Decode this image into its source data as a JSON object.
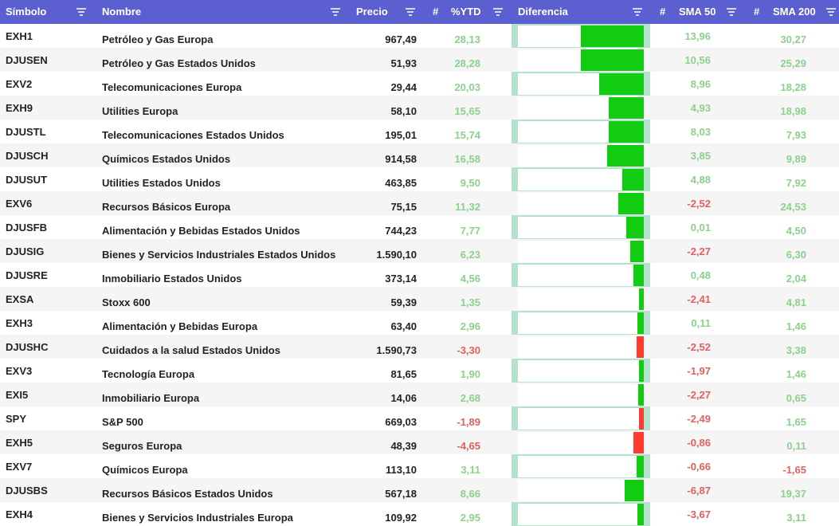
{
  "header": {
    "symbol": "Símbolo",
    "name": "Nombre",
    "price": "Precio",
    "ytd_hash": "#",
    "ytd": "%YTD",
    "diff": "Diferencia",
    "sma50_hash": "#",
    "sma50": "SMA 50",
    "sma200_hash": "#",
    "sma200": "SMA 200"
  },
  "colors": {
    "header_bg": "#5b5fd0",
    "positive": "#11cc11",
    "negative": "#ff3b30",
    "diff_column": "#b5e2cc"
  },
  "diff_scale_max": 28.28,
  "rows": [
    {
      "symbol": "EXH1",
      "name": "Petróleo y Gas Europa",
      "price": "967,49",
      "ytd": "28,13",
      "sma50": "13,96",
      "sma200": "30,27"
    },
    {
      "symbol": "DJUSEN",
      "name": "Petróleo y Gas Estados Unidos",
      "price": "51,93",
      "ytd": "28,28",
      "sma50": "10,56",
      "sma200": "25,29"
    },
    {
      "symbol": "EXV2",
      "name": "Telecomunicaciones Europa",
      "price": "29,44",
      "ytd": "20,03",
      "sma50": "8,96",
      "sma200": "18,28"
    },
    {
      "symbol": "EXH9",
      "name": "Utilities Europa",
      "price": "58,10",
      "ytd": "15,65",
      "sma50": "4,93",
      "sma200": "18,98"
    },
    {
      "symbol": "DJUSTL",
      "name": "Telecomunicaciones Estados Unidos",
      "price": "195,01",
      "ytd": "15,74",
      "sma50": "8,03",
      "sma200": "7,93"
    },
    {
      "symbol": "DJUSCH",
      "name": "Químicos Estados Unidos",
      "price": "914,58",
      "ytd": "16,58",
      "sma50": "3,85",
      "sma200": "9,89"
    },
    {
      "symbol": "DJUSUT",
      "name": "Utilities Estados Unidos",
      "price": "463,85",
      "ytd": "9,50",
      "sma50": "4,88",
      "sma200": "7,92"
    },
    {
      "symbol": "EXV6",
      "name": "Recursos Básicos Europa",
      "price": "75,15",
      "ytd": "11,32",
      "sma50": "-2,52",
      "sma200": "24,53"
    },
    {
      "symbol": "DJUSFB",
      "name": "Alimentación y Bebidas Estados Unidos",
      "price": "744,23",
      "ytd": "7,77",
      "sma50": "0,01",
      "sma200": "4,50"
    },
    {
      "symbol": "DJUSIG",
      "name": "Bienes y Servicios Industriales Estados Unidos",
      "price": "1.590,10",
      "ytd": "6,23",
      "sma50": "-2,27",
      "sma200": "6,30"
    },
    {
      "symbol": "DJUSRE",
      "name": "Inmobiliario Estados Unidos",
      "price": "373,14",
      "ytd": "4,56",
      "sma50": "0,48",
      "sma200": "2,04"
    },
    {
      "symbol": "EXSA",
      "name": "Stoxx 600",
      "price": "59,39",
      "ytd": "1,35",
      "sma50": "-2,41",
      "sma200": "4,81"
    },
    {
      "symbol": "EXH3",
      "name": "Alimentación y Bebidas Europa",
      "price": "63,40",
      "ytd": "2,96",
      "sma50": "0,11",
      "sma200": "1,46"
    },
    {
      "symbol": "DJUSHC",
      "name": "Cuidados a la salud Estados Unidos",
      "price": "1.590,73",
      "ytd": "-3,30",
      "sma50": "-2,52",
      "sma200": "3,38"
    },
    {
      "symbol": "EXV3",
      "name": "Tecnología Europa",
      "price": "81,65",
      "ytd": "1,90",
      "sma50": "-1,97",
      "sma200": "1,46"
    },
    {
      "symbol": "EXI5",
      "name": "Inmobiliario Europa",
      "price": "14,06",
      "ytd": "2,68",
      "sma50": "-2,27",
      "sma200": "0,65"
    },
    {
      "symbol": "SPY",
      "name": "S&P 500",
      "price": "669,03",
      "ytd": "-1,89",
      "sma50": "-2,49",
      "sma200": "1,65"
    },
    {
      "symbol": "EXH5",
      "name": "Seguros Europa",
      "price": "48,39",
      "ytd": "-4,65",
      "sma50": "-0,86",
      "sma200": "0,11"
    },
    {
      "symbol": "EXV7",
      "name": "Químicos Europa",
      "price": "113,10",
      "ytd": "3,11",
      "sma50": "-0,66",
      "sma200": "-1,65"
    },
    {
      "symbol": "DJUSBS",
      "name": "Recursos Básicos Estados Unidos",
      "price": "567,18",
      "ytd": "8,66",
      "sma50": "-6,87",
      "sma200": "19,37"
    },
    {
      "symbol": "EXH4",
      "name": "Bienes y Servicios Industriales Europa",
      "price": "109,92",
      "ytd": "2,95",
      "sma50": "-3,67",
      "sma200": "3,11"
    }
  ]
}
